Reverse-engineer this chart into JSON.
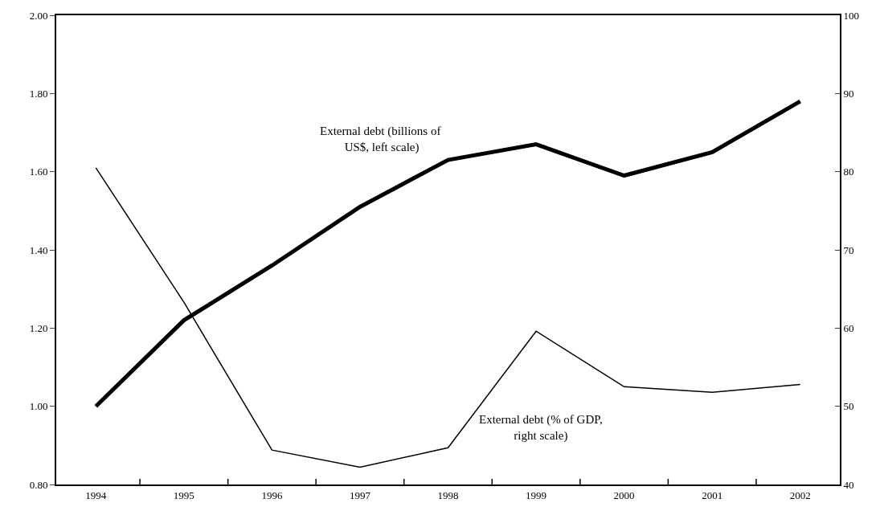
{
  "chart_data": {
    "type": "line",
    "categories": [
      "1994",
      "1995",
      "1996",
      "1997",
      "1998",
      "1999",
      "2000",
      "2001",
      "2002"
    ],
    "series": [
      {
        "name": "External debt (billions of US$, left scale)",
        "color": "#000000",
        "values": [
          1.0,
          1.22,
          1.36,
          1.51,
          1.63,
          1.67,
          1.59,
          1.65,
          1.78
        ]
      },
      {
        "name": "External debt (% of GDP, right scale)",
        "color": "#000000",
        "axis": "y2",
        "values": [
          80.5,
          63.3,
          44.4,
          42.2,
          44.7,
          59.6,
          52.5,
          51.8,
          52.8
        ]
      }
    ],
    "ylim": [
      0.8,
      2.0
    ],
    "yticks": [
      {
        "value": 0.8,
        "label": "0.80"
      },
      {
        "value": 1.0,
        "label": "1.00"
      },
      {
        "value": 1.2,
        "label": "1.20"
      },
      {
        "value": 1.4,
        "label": "1.40"
      },
      {
        "value": 1.6,
        "label": "1.60"
      },
      {
        "value": 1.8,
        "label": "1.80"
      },
      {
        "value": 2.0,
        "label": "2.00"
      }
    ],
    "y2lim": [
      40,
      100
    ],
    "y2ticks": [
      40,
      50,
      60,
      70,
      80,
      90,
      100
    ],
    "legend": false,
    "marker": "none",
    "line_style": "solid"
  }
}
